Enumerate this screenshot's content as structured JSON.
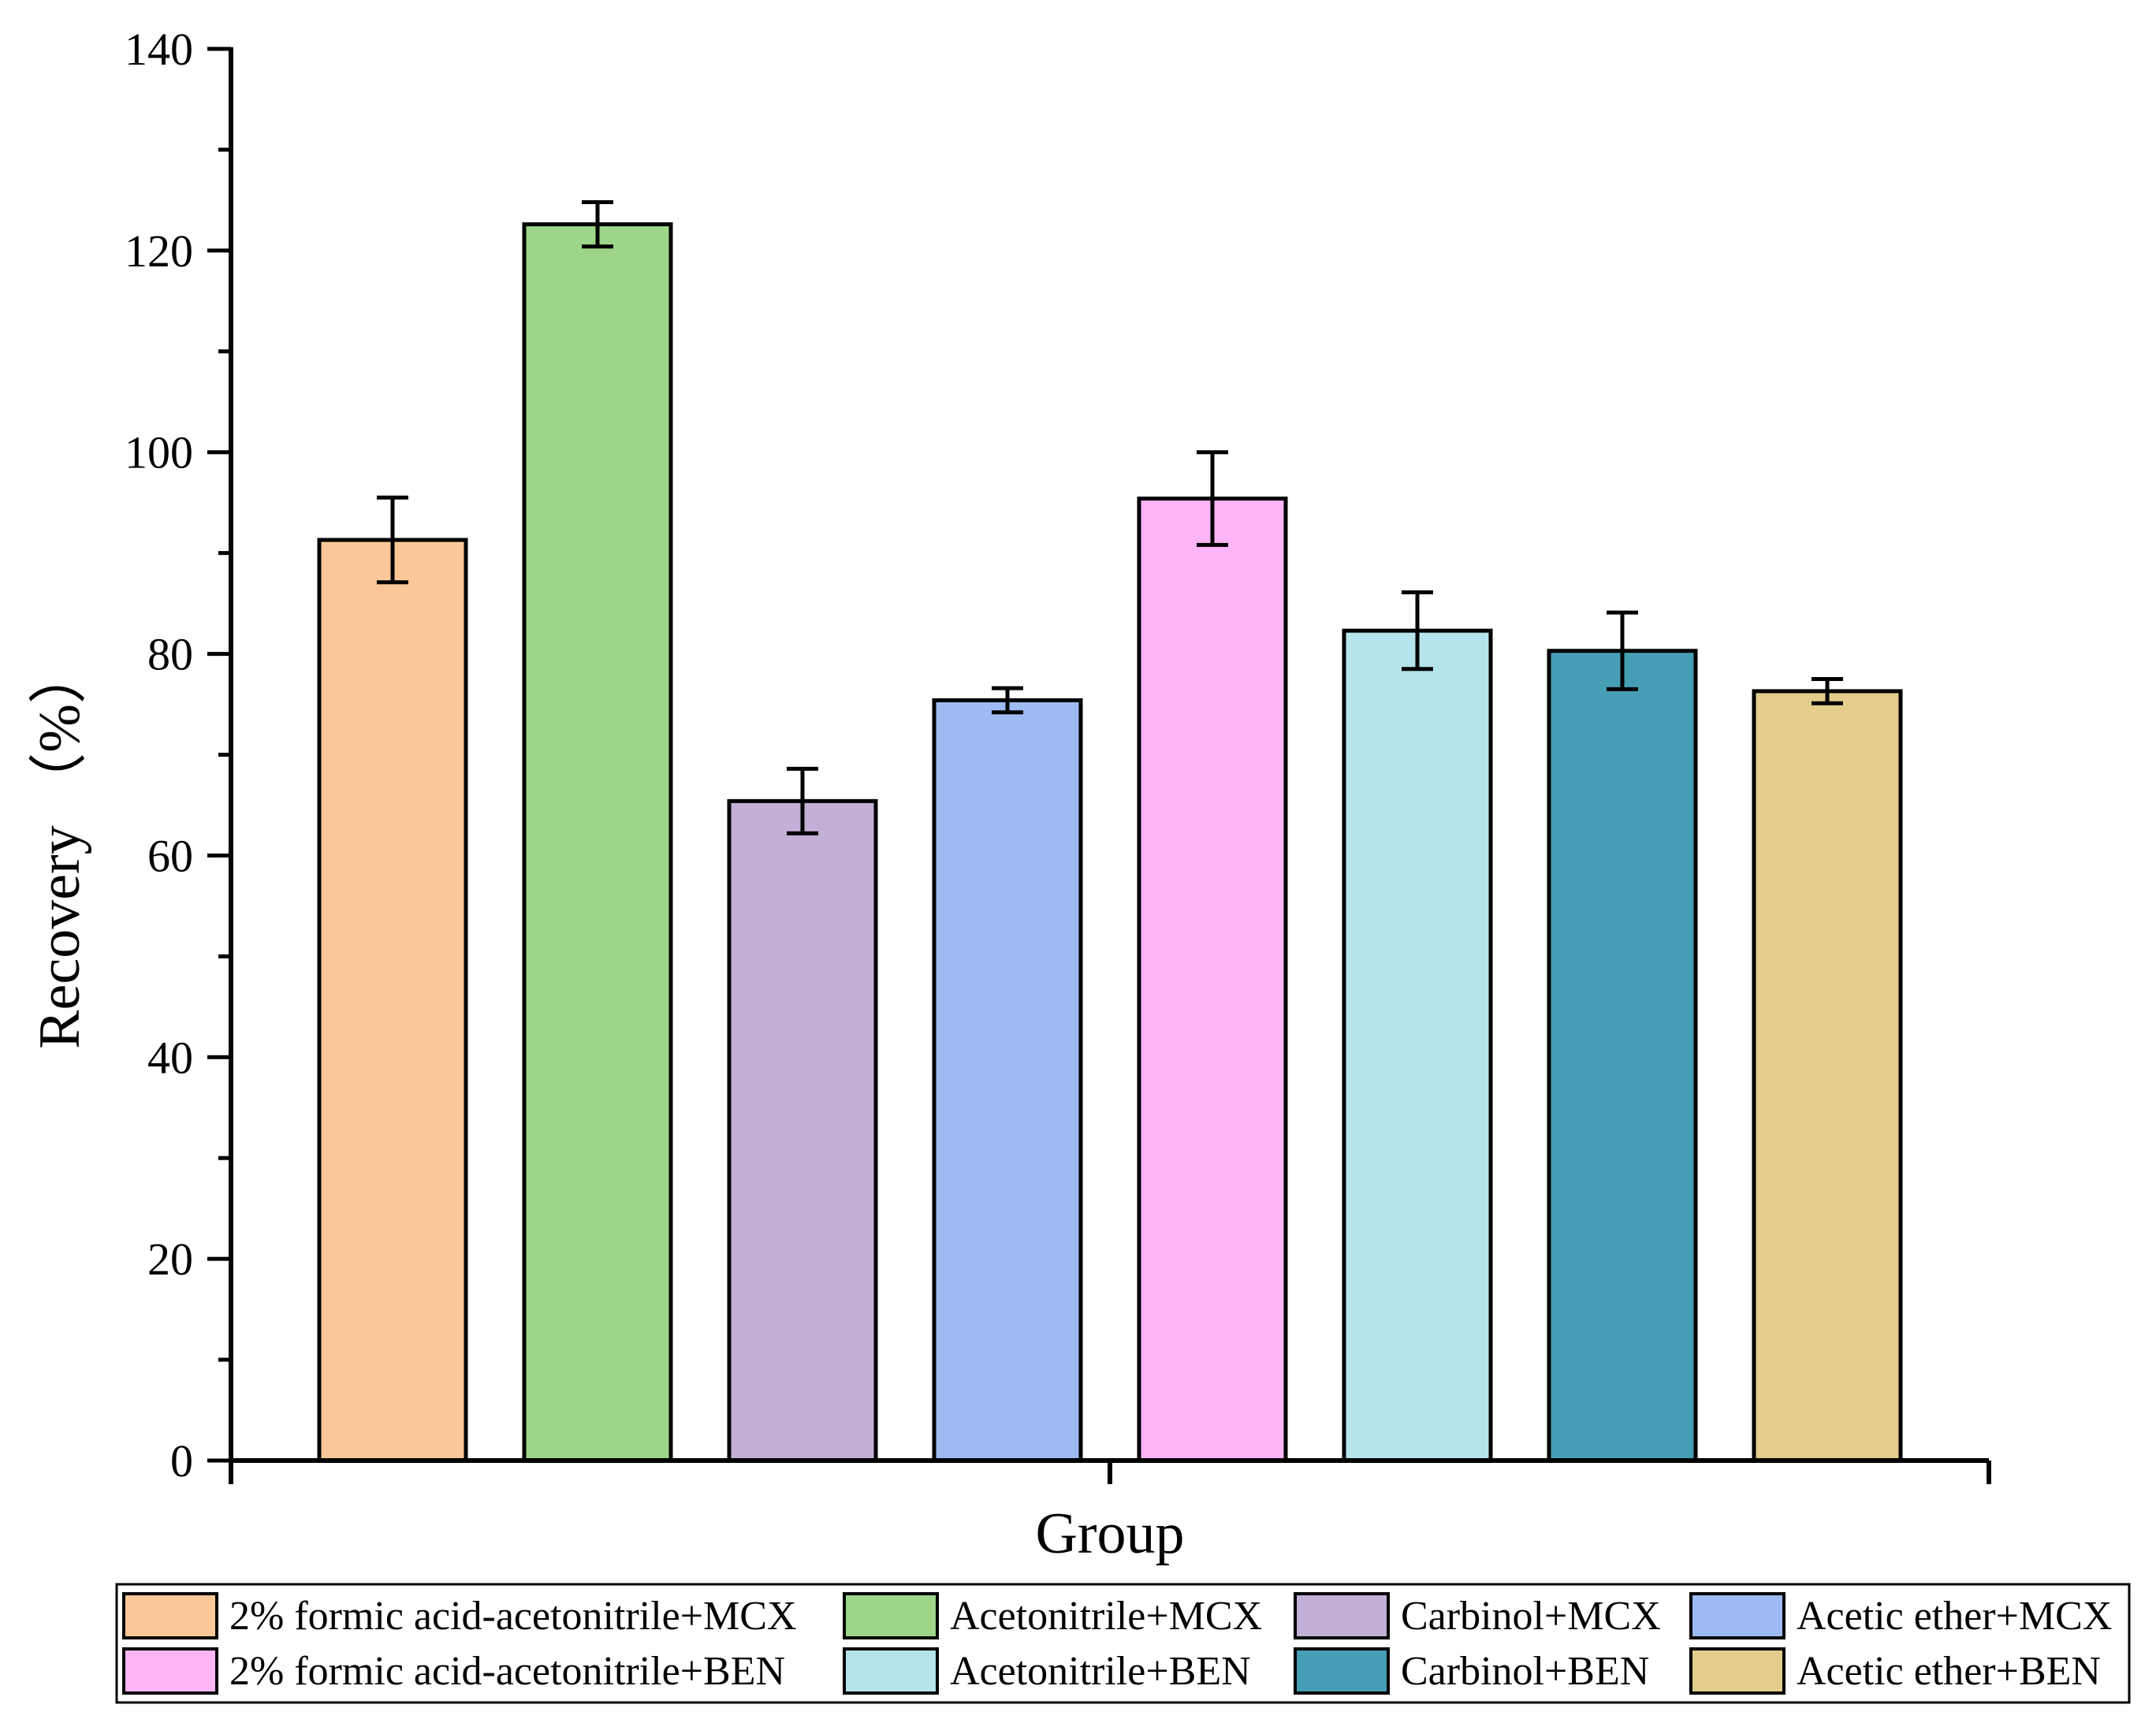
{
  "chart_data": {
    "type": "bar",
    "title": "",
    "xlabel": "Group",
    "ylabel": "Recovery （%）",
    "ylim": [
      0,
      140
    ],
    "yticks": [
      0,
      20,
      40,
      60,
      80,
      100,
      120,
      140
    ],
    "ytick_labels": [
      "0",
      "20",
      "40",
      "60",
      "80",
      "100",
      "120",
      "140"
    ],
    "grid": false,
    "legend_position": "bottom",
    "series": [
      {
        "name": "2% formic acid-acetonitrile+MCX",
        "value": 91.3,
        "error": 4.2,
        "color": "#FAC898"
      },
      {
        "name": "Acetonitrile+MCX",
        "value": 122.6,
        "error": 2.2,
        "color": "#9ED689"
      },
      {
        "name": "Carbinol+MCX",
        "value": 65.4,
        "error": 3.2,
        "color": "#C2B0D6"
      },
      {
        "name": "Acetic ether+MCX",
        "value": 75.4,
        "error": 1.2,
        "color": "#9DBBF2"
      },
      {
        "name": "2% formic acid-acetonitrile+BEN",
        "value": 95.4,
        "error": 4.6,
        "color": "#FDB5F7"
      },
      {
        "name": "Acetonitrile+BEN",
        "value": 82.3,
        "error": 3.8,
        "color": "#B5E4EA"
      },
      {
        "name": "Carbinol+BEN",
        "value": 80.3,
        "error": 3.8,
        "color": "#469EB4"
      },
      {
        "name": "Acetic ether+BEN",
        "value": 76.3,
        "error": 1.2,
        "color": "#E4CC8C"
      }
    ]
  }
}
